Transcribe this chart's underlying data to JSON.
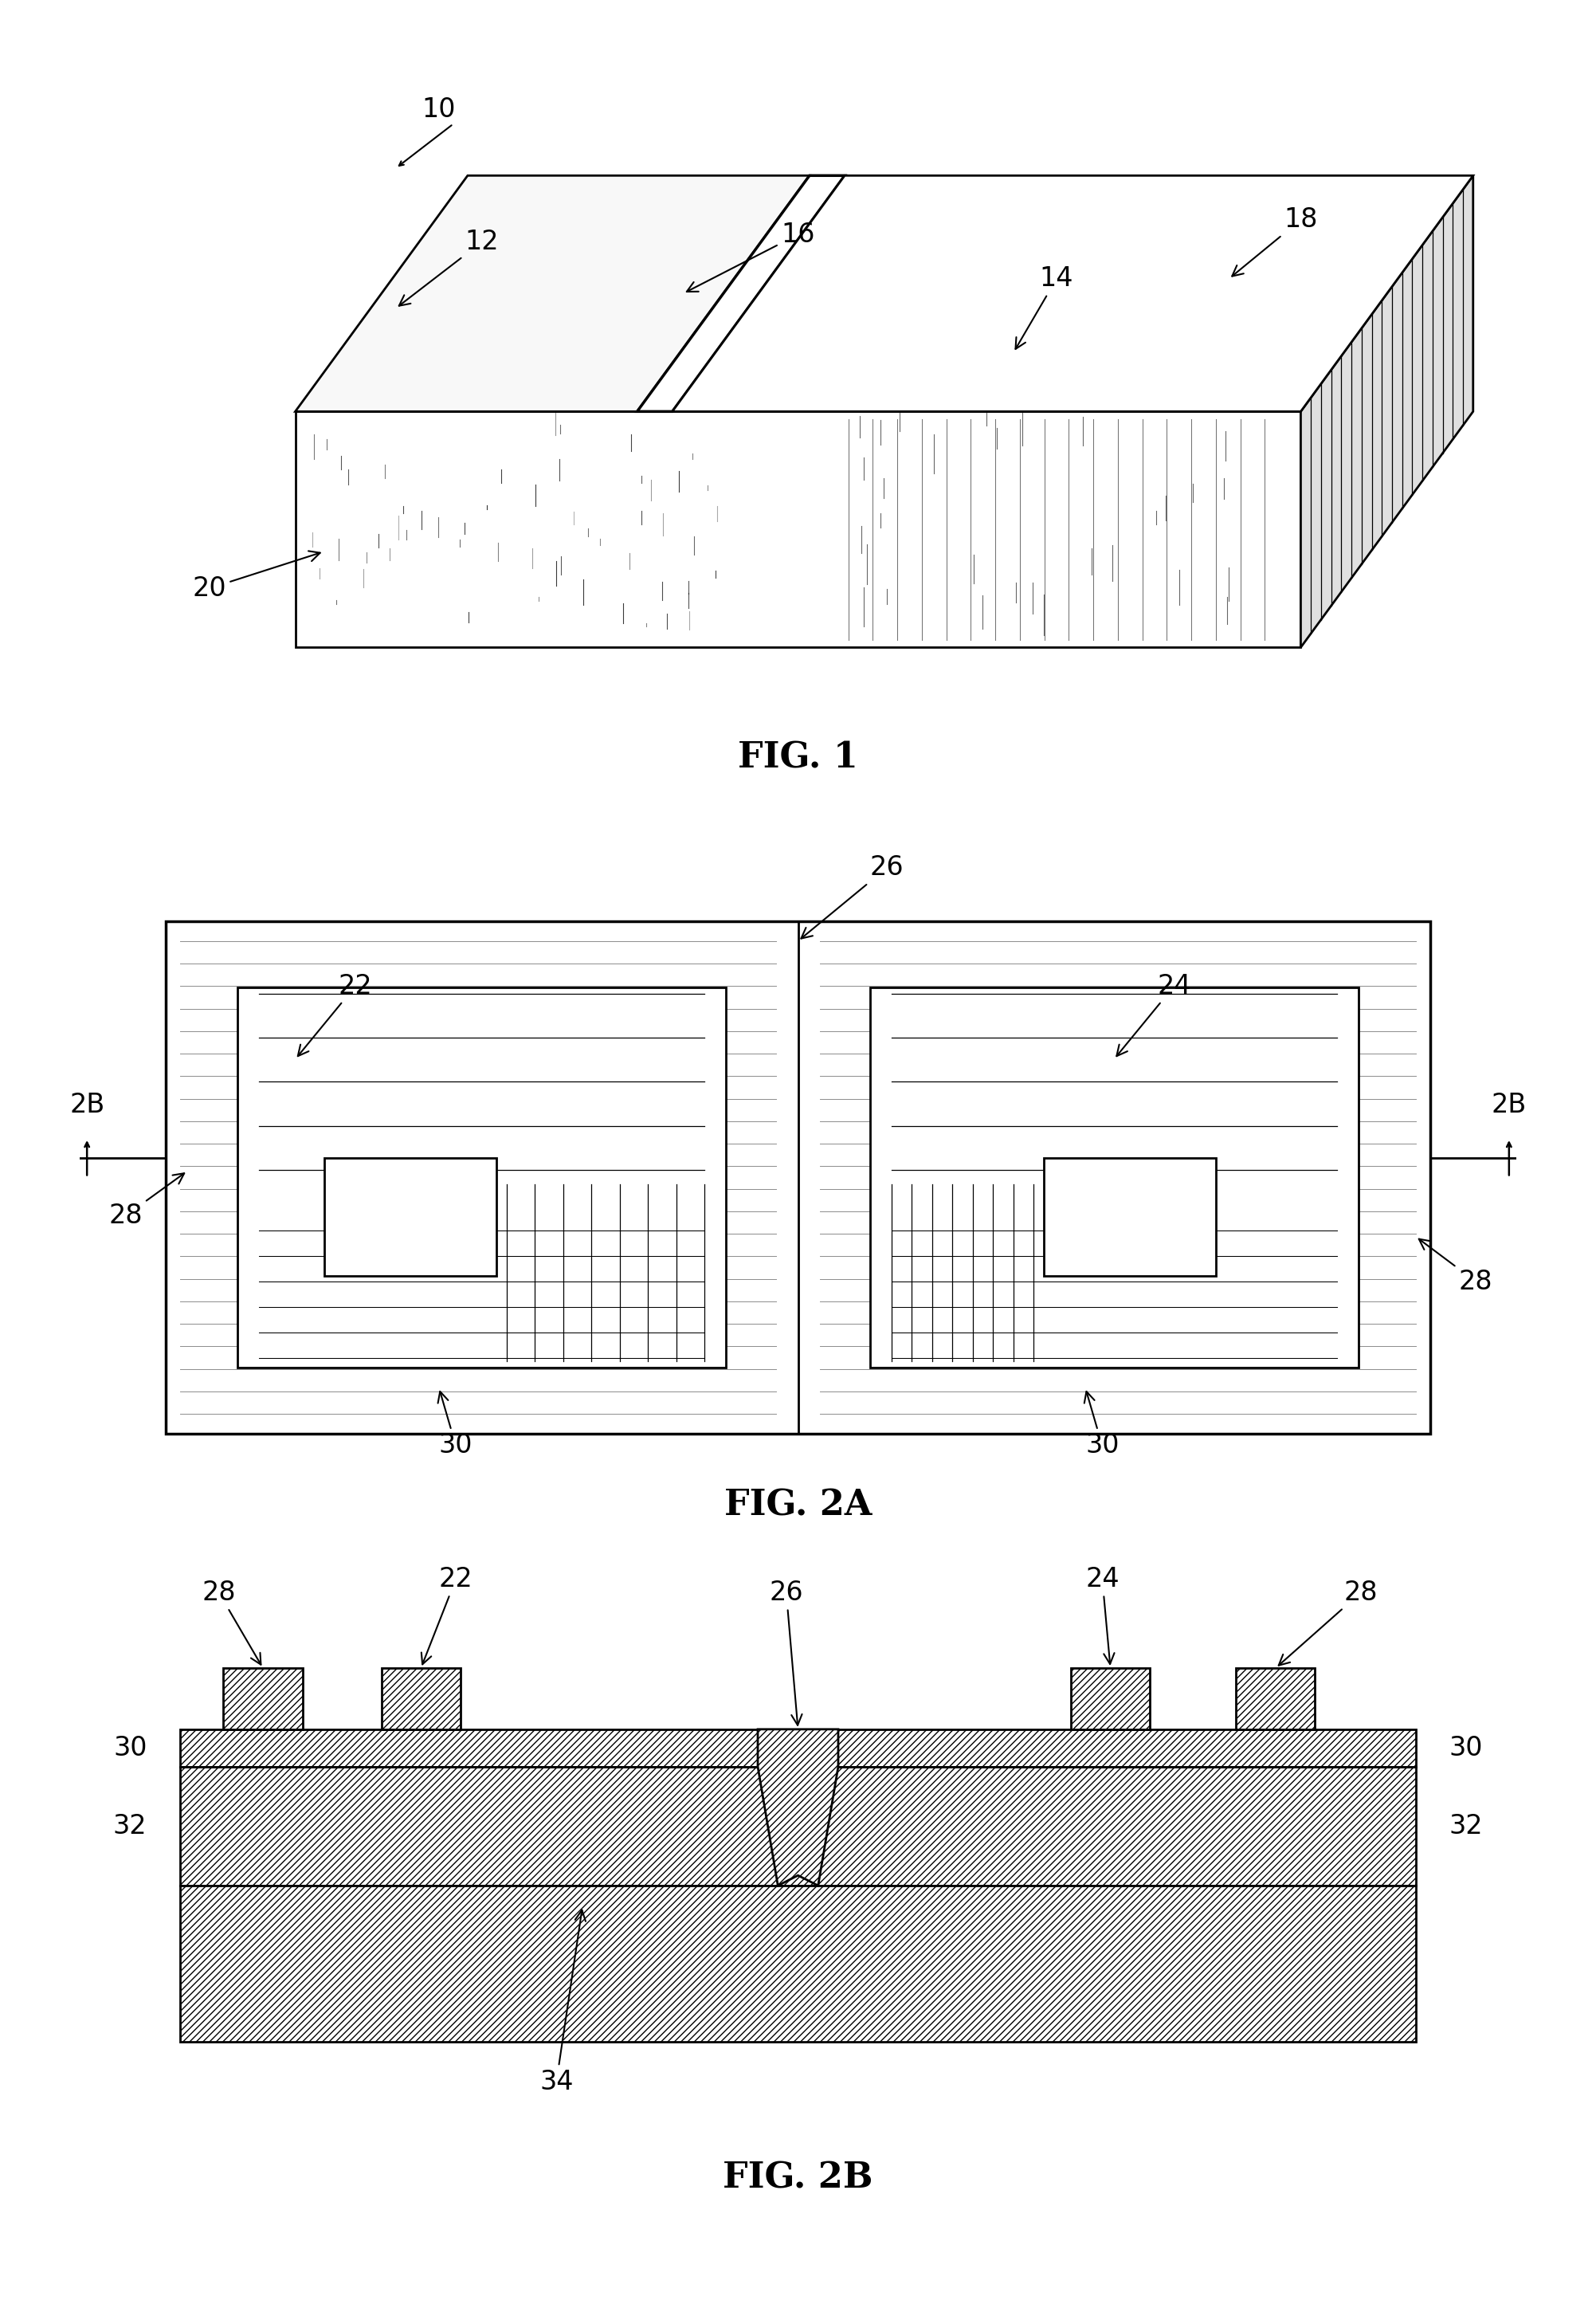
{
  "fig1": {
    "label": "FIG. 1"
  },
  "fig2a": {
    "label": "FIG. 2A"
  },
  "fig2b": {
    "label": "FIG. 2B"
  },
  "background_color": "#ffffff",
  "line_color": "#000000",
  "font_size_label": 32,
  "font_size_annot": 24
}
